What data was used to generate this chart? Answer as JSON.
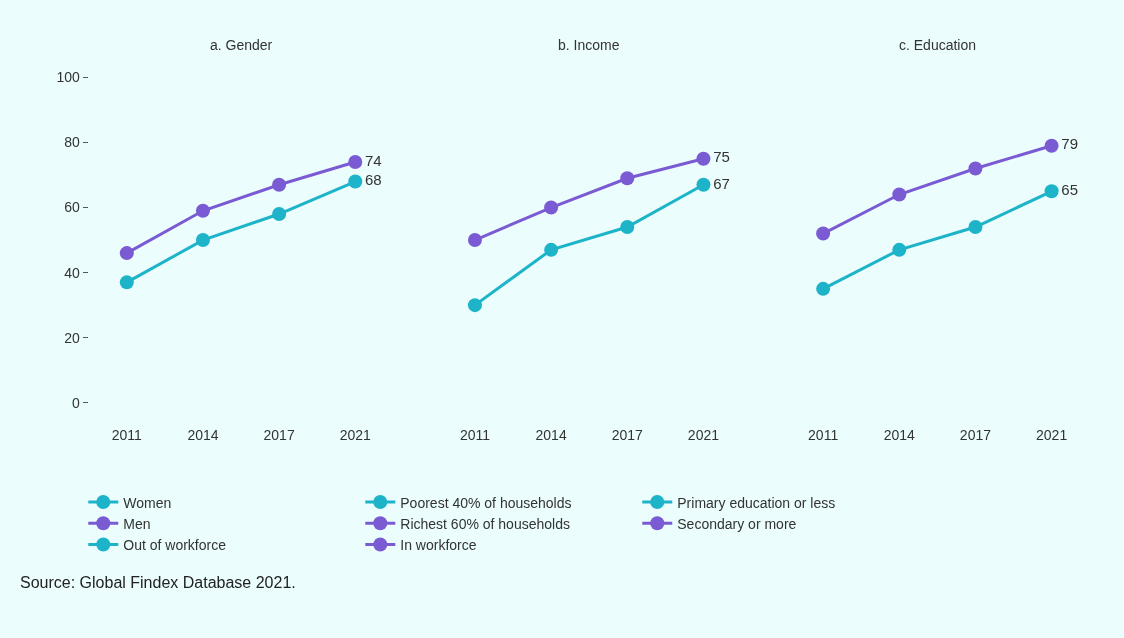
{
  "chart_data": [
    {
      "type": "line",
      "title": "a. Gender",
      "categories": [
        "2011",
        "2014",
        "2017",
        "2021"
      ],
      "ylim": [
        0,
        100
      ],
      "yticks": [
        0,
        20,
        40,
        60,
        80,
        100
      ],
      "grid": false,
      "marker": "circle",
      "line_style": "solid",
      "legend": "bottom",
      "series": [
        {
          "name": "Women",
          "color": "#1db3c8",
          "values": [
            37,
            50,
            58,
            68
          ],
          "value_labels": [
            null,
            null,
            null,
            "68"
          ]
        },
        {
          "name": "Men",
          "color": "#7b5bd3",
          "values": [
            46,
            59,
            67,
            74
          ],
          "value_labels": [
            null,
            null,
            null,
            "74"
          ]
        }
      ],
      "annotations": [
        "Source: Global Findex Database 2021."
      ]
    },
    {
      "type": "line",
      "title": "b. Income",
      "categories": [
        "2011",
        "2014",
        "2017",
        "2021"
      ],
      "ylim": [
        0,
        100
      ],
      "yticks": [
        0,
        20,
        40,
        60,
        80,
        100
      ],
      "tick_labels": "x",
      "grid": false,
      "marker": "circle",
      "line_style": "solid",
      "legend": "bottom",
      "series": [
        {
          "name": "Poorest 40% of households",
          "color": "#1db3c8",
          "values": [
            30,
            47,
            54,
            67
          ],
          "value_labels": [
            null,
            null,
            null,
            "67"
          ]
        },
        {
          "name": "Richest 60% of households",
          "color": "#7b5bd3",
          "values": [
            50,
            60,
            69,
            75
          ],
          "value_labels": [
            null,
            null,
            null,
            "75"
          ]
        }
      ]
    },
    {
      "type": "line",
      "title": "c. Education",
      "categories": [
        "2011",
        "2014",
        "2017",
        "2021"
      ],
      "ylim": [
        0,
        100
      ],
      "yticks": [
        0,
        20,
        40,
        60,
        80,
        100
      ],
      "tick_labels": "x",
      "grid": false,
      "marker": "circle",
      "line_style": "solid",
      "legend": "bottom",
      "series": [
        {
          "name": "Primary education or less",
          "color": "#1db3c8",
          "values": [
            35,
            47,
            54,
            65
          ],
          "value_labels": [
            null,
            null,
            null,
            "65"
          ]
        },
        {
          "name": "Secondary or more",
          "color": "#7b5bd3",
          "values": [
            52,
            64,
            72,
            79
          ],
          "value_labels": [
            null,
            null,
            null,
            "79"
          ]
        },
        {
          "name": "Out of workforce",
          "color": "#1db3c8",
          "values": [
            null,
            null,
            null,
            null
          ]
        },
        {
          "name": "In workforce",
          "color": "#7b5bd3",
          "values": [
            null,
            null,
            null,
            null
          ]
        }
      ]
    }
  ]
}
